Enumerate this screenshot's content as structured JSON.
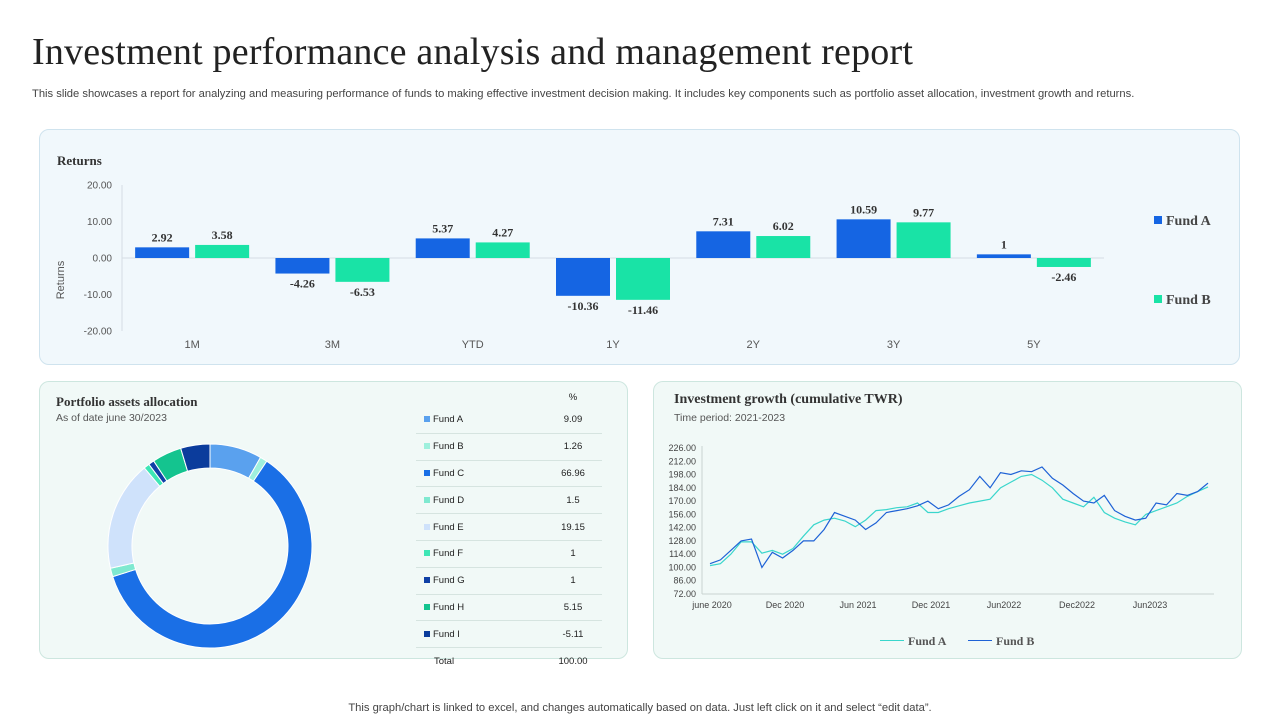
{
  "page": {
    "title": "Investment performance analysis and management report",
    "subtitle": "This slide showcases a report for analyzing and measuring performance of funds to making effective investment decision making. It includes key components such as portfolio asset allocation, investment growth and returns.",
    "footer": "This graph/chart is linked to excel,  and changes automatically based on data. Just left click on it and select “edit data”."
  },
  "colors": {
    "fund_a": "#1565e3",
    "fund_b": "#19e3a6",
    "line_a": "#3ad6cc",
    "line_b": "#1e62d6"
  },
  "chart_data": [
    {
      "type": "bar",
      "title": "Returns",
      "ylabel": "Returns",
      "categories": [
        "1M",
        "3M",
        "YTD",
        "1Y",
        "2Y",
        "3Y",
        "5Y"
      ],
      "series": [
        {
          "name": "Fund A",
          "values": [
            2.92,
            -4.26,
            5.37,
            -10.36,
            7.31,
            10.59,
            1
          ]
        },
        {
          "name": "Fund B",
          "values": [
            3.58,
            -6.53,
            4.27,
            -11.46,
            6.02,
            9.77,
            -2.46
          ]
        }
      ],
      "ylim": [
        -20,
        20
      ],
      "yticks": [
        "20.00",
        "10.00",
        "0.00",
        "-10.00",
        "-20.00"
      ],
      "legend": "right"
    },
    {
      "type": "pie",
      "title": "Portfolio assets allocation",
      "subtitle": "As of date june 30/2023",
      "column_header": "%",
      "labels": [
        "Fund A",
        "Fund B",
        "Fund C",
        "Fund D",
        "Fund E",
        "Fund F",
        "Fund G",
        "Fund H",
        "Fund I"
      ],
      "values": [
        9.09,
        1.26,
        66.96,
        1.5,
        19.15,
        1,
        1,
        5.15,
        -5.11
      ],
      "display_values": [
        "9.09",
        "1.26",
        "66.96",
        "1.5",
        "19.15",
        "1",
        "1",
        "5.15",
        "-5.11"
      ],
      "colors": [
        "#5aa1ee",
        "#9ef0dd",
        "#1a6fe6",
        "#7fe9d0",
        "#cfe2fb",
        "#3ee6b5",
        "#1040a6",
        "#14c48f",
        "#0b3c9c"
      ],
      "total_label": "Total",
      "total": "100.00"
    },
    {
      "type": "line",
      "title": "Investment growth (cumulative TWR)",
      "subtitle": "Time  period: 2021-2023",
      "yticks": [
        72,
        86,
        100,
        114,
        128,
        142,
        156,
        170,
        184,
        198,
        212,
        226
      ],
      "ylim": [
        72,
        226
      ],
      "xlabels": [
        "june 2020",
        "Dec 2020",
        "Jun 2021",
        "Dec 2021",
        "Jun2022",
        "Dec2022",
        "Jun2023"
      ],
      "series": [
        {
          "name": "Fund A",
          "values": [
            102,
            104,
            114,
            127,
            127,
            115,
            118,
            114,
            120,
            133,
            145,
            150,
            152,
            149,
            143,
            150,
            160,
            161,
            163,
            164,
            168,
            158,
            158,
            162,
            165,
            168,
            170,
            172,
            184,
            190,
            196,
            198,
            192,
            184,
            172,
            168,
            164,
            174,
            158,
            152,
            148,
            145,
            156,
            160,
            164,
            168,
            175,
            180,
            185
          ]
        },
        {
          "name": "Fund B",
          "values": [
            104,
            108,
            118,
            128,
            130,
            100,
            116,
            110,
            118,
            128,
            128,
            140,
            158,
            154,
            150,
            140,
            147,
            158,
            160,
            162,
            165,
            170,
            162,
            166,
            175,
            182,
            196,
            184,
            200,
            198,
            202,
            201,
            206,
            194,
            187,
            178,
            170,
            168,
            176,
            160,
            154,
            150,
            152,
            168,
            166,
            178,
            176,
            180,
            189
          ]
        }
      ]
    }
  ]
}
